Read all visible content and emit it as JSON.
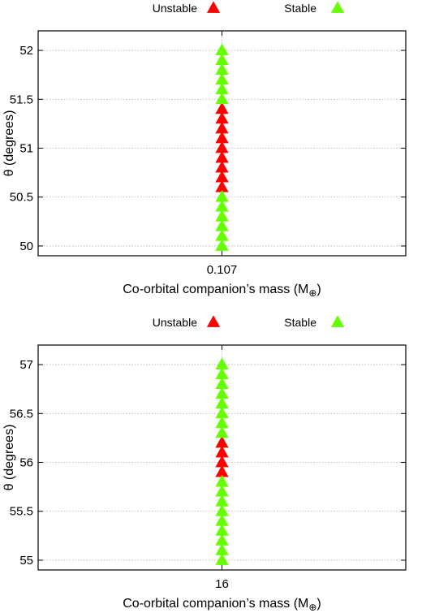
{
  "chart_data": [
    {
      "type": "scatter",
      "xlabel": "Co-orbital companion’s mass (M",
      "xlabel_subscript": "⊕",
      "xlabel_suffix": ")",
      "ylabel": "θ (degrees)",
      "x_ticks": [
        "0.107"
      ],
      "y_ticks": [
        "50",
        "50.5",
        "51",
        "51.5",
        "52"
      ],
      "ylim": [
        49.9,
        52.2
      ],
      "grid": true,
      "legend_placement": "top, outside",
      "series": [
        {
          "name": "Unstable",
          "color": "#ff0000",
          "marker": "triangle",
          "x": [
            0.107,
            0.107,
            0.107,
            0.107,
            0.107,
            0.107,
            0.107,
            0.107,
            0.107
          ],
          "y": [
            50.6,
            50.7,
            50.8,
            50.9,
            51.0,
            51.1,
            51.2,
            51.3,
            51.4
          ]
        },
        {
          "name": "Stable",
          "color": "#66ff00",
          "marker": "triangle",
          "x": [
            0.107,
            0.107,
            0.107,
            0.107,
            0.107,
            0.107,
            0.107,
            0.107,
            0.107,
            0.107,
            0.107,
            0.107
          ],
          "y": [
            50.0,
            50.1,
            50.2,
            50.3,
            50.4,
            50.5,
            51.5,
            51.6,
            51.7,
            51.8,
            51.9,
            52.0
          ]
        }
      ]
    },
    {
      "type": "scatter",
      "xlabel": "Co-orbital companion’s mass (M",
      "xlabel_subscript": "⊕",
      "xlabel_suffix": ")",
      "ylabel": "θ (degrees)",
      "x_ticks": [
        "16"
      ],
      "y_ticks": [
        "55",
        "55.5",
        "56",
        "56.5",
        "57"
      ],
      "ylim": [
        54.9,
        57.2
      ],
      "grid": true,
      "legend_placement": "top, outside",
      "series": [
        {
          "name": "Unstable",
          "color": "#ff0000",
          "marker": "triangle",
          "x": [
            16,
            16,
            16,
            16
          ],
          "y": [
            55.9,
            56.0,
            56.1,
            56.2
          ]
        },
        {
          "name": "Stable",
          "color": "#66ff00",
          "marker": "triangle",
          "x": [
            16,
            16,
            16,
            16,
            16,
            16,
            16,
            16,
            16,
            16,
            16,
            16,
            16,
            16,
            16,
            16,
            16
          ],
          "y": [
            55.0,
            55.1,
            55.2,
            55.3,
            55.4,
            55.5,
            55.6,
            55.7,
            55.8,
            56.3,
            56.4,
            56.5,
            56.6,
            56.7,
            56.8,
            56.9,
            57.0
          ]
        }
      ]
    }
  ]
}
